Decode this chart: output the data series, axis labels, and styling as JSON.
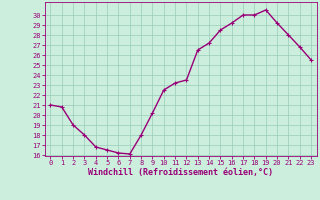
{
  "x": [
    0,
    1,
    2,
    3,
    4,
    5,
    6,
    7,
    8,
    9,
    10,
    11,
    12,
    13,
    14,
    15,
    16,
    17,
    18,
    19,
    20,
    21,
    22,
    23
  ],
  "y": [
    21,
    20.8,
    19,
    18,
    16.8,
    16.5,
    16.2,
    16.1,
    18,
    20.2,
    22.5,
    23.2,
    23.5,
    26.5,
    27.2,
    28.5,
    29.2,
    30,
    30,
    30.5,
    29.2,
    28,
    26.8,
    25.5
  ],
  "line_color": "#990077",
  "marker": "+",
  "bg_color": "#cceedd",
  "grid_color": "#99ccbb",
  "xlabel": "Windchill (Refroidissement éolien,°C)",
  "xlabel_color": "#990077",
  "tick_color": "#990077",
  "ylim": [
    16,
    31
  ],
  "xlim": [
    -0.5,
    23.5
  ],
  "yticks": [
    16,
    17,
    18,
    19,
    20,
    21,
    22,
    23,
    24,
    25,
    26,
    27,
    28,
    29,
    30
  ],
  "xticks": [
    0,
    1,
    2,
    3,
    4,
    5,
    6,
    7,
    8,
    9,
    10,
    11,
    12,
    13,
    14,
    15,
    16,
    17,
    18,
    19,
    20,
    21,
    22,
    23
  ],
  "marker_size": 3,
  "line_width": 1.0,
  "tick_fontsize": 5,
  "xlabel_fontsize": 6
}
